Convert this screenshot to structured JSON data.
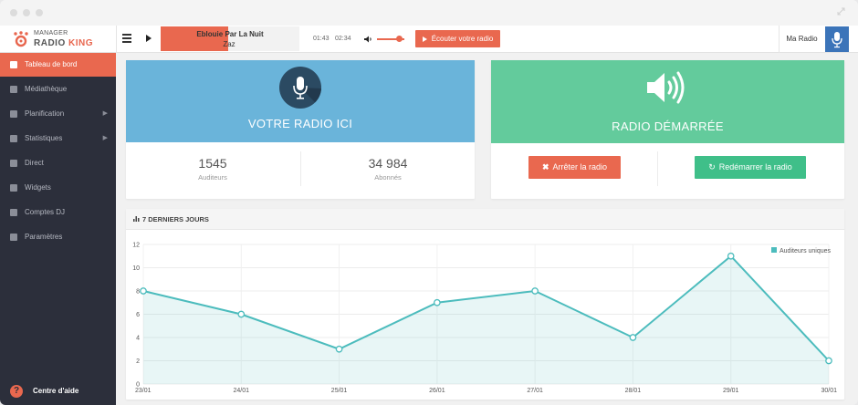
{
  "window": {
    "controls": [
      "close",
      "minimize",
      "maximize"
    ],
    "expand_icon": "expand-icon"
  },
  "brand": {
    "manager": "MANAGER",
    "radio": "RADIO",
    "king": "KING",
    "accent": "#e8664e"
  },
  "player": {
    "track_title": "Eblouie Par La Nuit",
    "track_artist": "Zaz",
    "progress": 0.49,
    "elapsed": "01:43",
    "duration": "02:34",
    "volume": 0.75,
    "listen_label": "Écouter votre radio"
  },
  "account": {
    "radio_name": "Ma Radio",
    "avatar_icon": "microphone-icon"
  },
  "sidebar": {
    "items": [
      {
        "label": "Tableau de bord",
        "icon": "dashboard-icon",
        "active": true
      },
      {
        "label": "Médiathèque",
        "icon": "music-icon"
      },
      {
        "label": "Planification",
        "icon": "calendar-icon",
        "submenu": true
      },
      {
        "label": "Statistiques",
        "icon": "bar-chart-icon",
        "submenu": true
      },
      {
        "label": "Direct",
        "icon": "microphone-icon"
      },
      {
        "label": "Widgets",
        "icon": "puzzle-icon"
      },
      {
        "label": "Comptes DJ",
        "icon": "users-icon"
      },
      {
        "label": "Paramètres",
        "icon": "wrench-icon"
      }
    ],
    "help_label": "Centre d'aide"
  },
  "radio_card": {
    "title": "VOTRE RADIO ICI",
    "listeners_value": "1545",
    "listeners_label": "Auditeurs",
    "subscribers_value": "34 984",
    "subscribers_label": "Abonnés",
    "color": "#6ab4da"
  },
  "status_card": {
    "title": "RADIO DÉMARRÉE",
    "stop_label": "Arrêter la radio",
    "restart_label": "Redémarrer la radio",
    "color": "#63cb9c"
  },
  "stats_card": {
    "title": "7 DERNIERS JOURS"
  },
  "chart_data": {
    "type": "area",
    "categories": [
      "23/01",
      "24/01",
      "25/01",
      "26/01",
      "27/01",
      "28/01",
      "29/01",
      "30/01"
    ],
    "series": [
      {
        "name": "Auditeurs uniques",
        "values": [
          8,
          6,
          3,
          7,
          8,
          4,
          11,
          2
        ],
        "color": "#4cbcbd"
      }
    ],
    "ylim": [
      0,
      12
    ],
    "yticks": [
      0,
      2,
      4,
      6,
      8,
      10,
      12
    ],
    "grid": true,
    "legend": "top-right",
    "title": "",
    "xlabel": "",
    "ylabel": ""
  }
}
